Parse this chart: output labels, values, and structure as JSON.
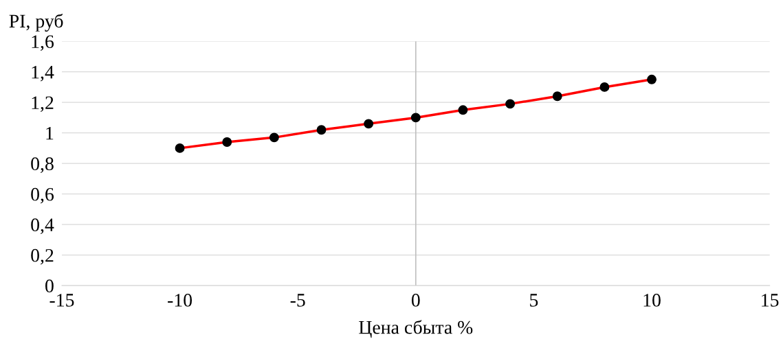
{
  "chart_data": {
    "type": "line",
    "xlabel": "Цена сбыта %",
    "ylabel": "PI, руб",
    "x": [
      -10,
      -8,
      -6,
      -4,
      -2,
      0,
      2,
      4,
      6,
      8,
      10
    ],
    "series": [
      {
        "color": "#ff0000",
        "values": [
          0.9,
          0.94,
          0.97,
          1.02,
          1.06,
          1.1,
          1.15,
          1.19,
          1.24,
          1.3,
          1.35
        ]
      }
    ],
    "marker": "circle",
    "line_style": "solid",
    "grid": "y",
    "xlim": [
      -15,
      15
    ],
    "xticks": [
      -15,
      -10,
      -5,
      0,
      5,
      10,
      15
    ],
    "ylim": [
      0,
      1.6
    ],
    "yticks": [
      0,
      {
        "value": 0.2,
        "label": "0,2"
      },
      {
        "value": 0.4,
        "label": "0,4"
      },
      {
        "value": 0.6,
        "label": "0,6"
      },
      {
        "value": 0.8,
        "label": "0,8"
      },
      1,
      {
        "value": 1.2,
        "label": "1,2"
      },
      {
        "value": 1.4,
        "label": "1,4"
      },
      {
        "value": 1.6,
        "label": "1,6"
      }
    ],
    "ref_lines": [
      {
        "axis": "x",
        "value": 0,
        "color": "#bfbfbf"
      }
    ]
  }
}
